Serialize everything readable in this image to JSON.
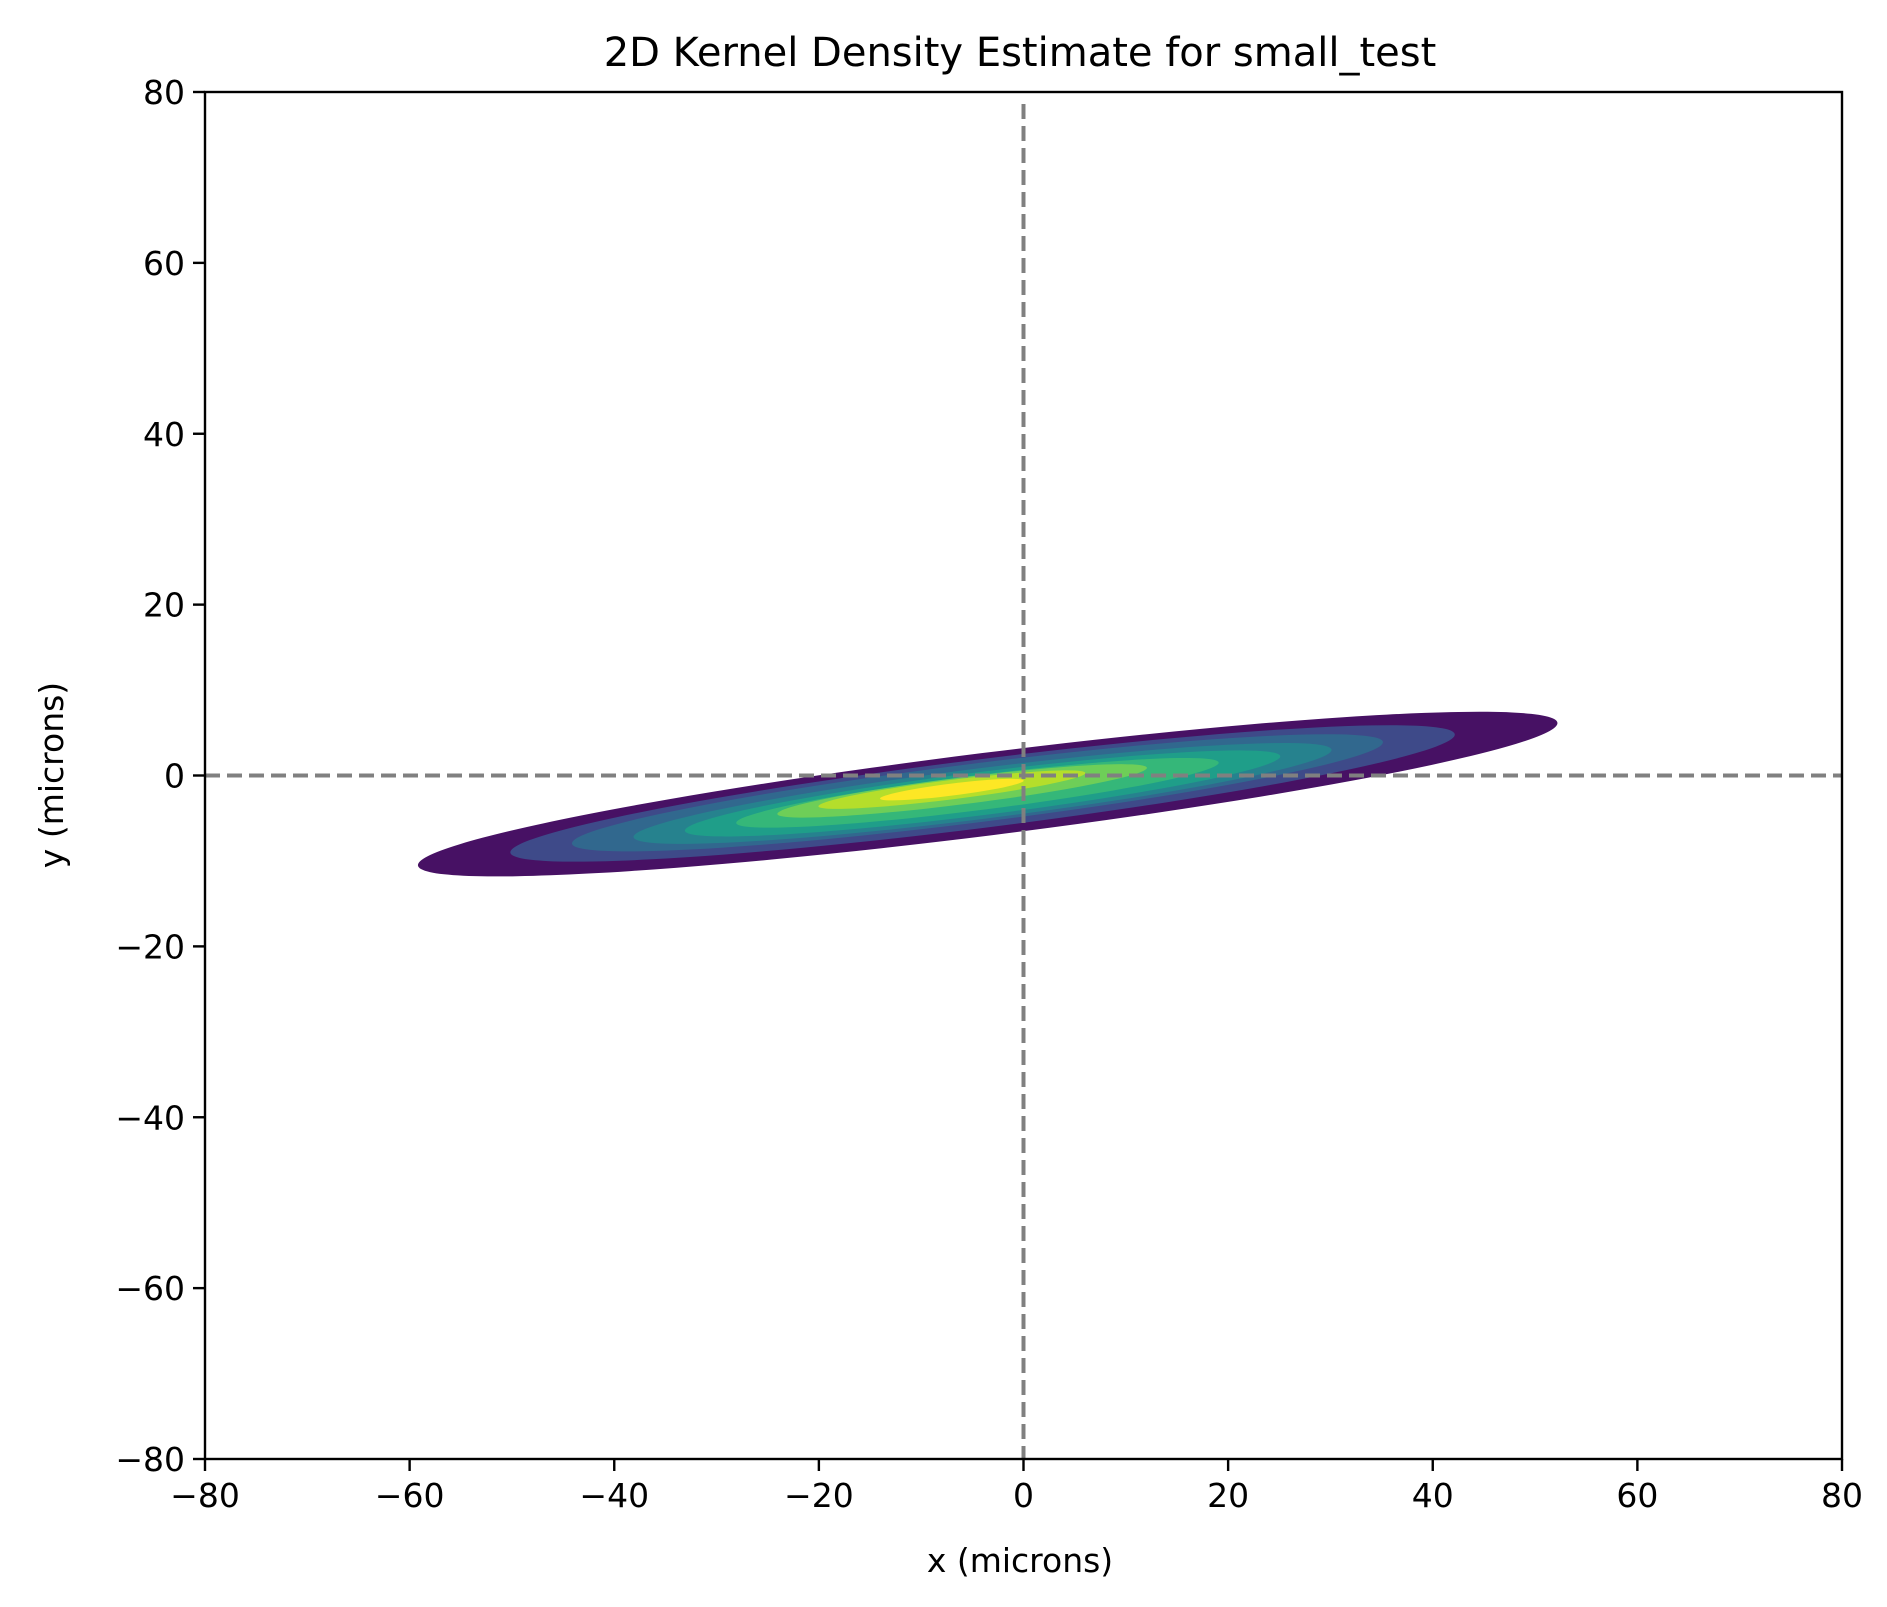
{
  "chart_data": {
    "type": "contour",
    "title": "2D Kernel Density Estimate for small_test",
    "xlabel": "x (microns)",
    "ylabel": "y (microns)",
    "xlim": [
      -80,
      80
    ],
    "ylim": [
      -80,
      80
    ],
    "xticks": [
      -80,
      -60,
      -40,
      -20,
      0,
      20,
      40,
      60,
      80
    ],
    "yticks": [
      -80,
      -60,
      -40,
      -20,
      0,
      20,
      40,
      60,
      80
    ],
    "xtick_labels": [
      "−80",
      "−60",
      "−40",
      "−20",
      "0",
      "20",
      "40",
      "60",
      "80"
    ],
    "ytick_labels": [
      "−80",
      "−60",
      "−40",
      "−20",
      "0",
      "20",
      "40",
      "60",
      "80"
    ],
    "grid": false,
    "legend": "none",
    "colormap": "viridis",
    "reference_lines": [
      {
        "orientation": "vertical",
        "x": 0,
        "style": "dashed",
        "color": "#808080"
      },
      {
        "orientation": "horizontal",
        "y": 0,
        "style": "dashed",
        "color": "#808080"
      }
    ],
    "density": {
      "center": [
        -8,
        -1.5
      ],
      "orientation_slope": -0.15,
      "levels": [
        {
          "level": 1,
          "color": "#471164",
          "x_range": [
            -59,
            52
          ]
        },
        {
          "level": 2,
          "color": "#3e4a89",
          "x_range": [
            -50,
            42
          ]
        },
        {
          "level": 3,
          "color": "#31688e",
          "x_range": [
            -44,
            35
          ]
        },
        {
          "level": 4,
          "color": "#26828e",
          "x_range": [
            -38,
            30
          ]
        },
        {
          "level": 5,
          "color": "#1f9e89",
          "x_range": [
            -33,
            25
          ]
        },
        {
          "level": 6,
          "color": "#35b779",
          "x_range": [
            -28,
            19
          ]
        },
        {
          "level": 7,
          "color": "#6ece58",
          "x_range": [
            -24,
            12
          ]
        },
        {
          "level": 8,
          "color": "#b5de2b",
          "x_range": [
            -20,
            6
          ]
        },
        {
          "level": 9,
          "color": "#fde725",
          "x_range": [
            -14,
            0
          ]
        }
      ]
    }
  }
}
